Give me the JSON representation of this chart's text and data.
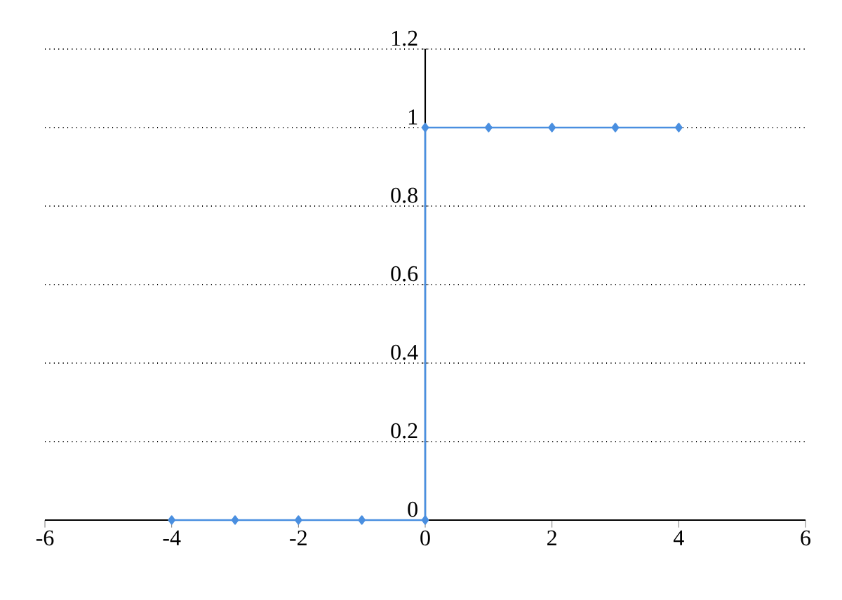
{
  "chart_data": {
    "type": "line",
    "x": [
      -4,
      -3,
      -2,
      -1,
      0,
      0,
      1,
      2,
      3,
      4
    ],
    "series": [
      {
        "color": "#4a8fe0",
        "values": [
          0,
          0,
          0,
          0,
          0,
          1,
          1,
          1,
          1,
          1
        ]
      }
    ],
    "xlim": [
      -6,
      6
    ],
    "xticks": [
      -6,
      -4,
      -2,
      0,
      2,
      4,
      6
    ],
    "ylim": [
      0,
      1.2
    ],
    "yticks": [
      0,
      0.2,
      0.4,
      0.6,
      0.8,
      1,
      1.2
    ],
    "grid": "y",
    "marker": "diamond",
    "line_style": "solid"
  }
}
